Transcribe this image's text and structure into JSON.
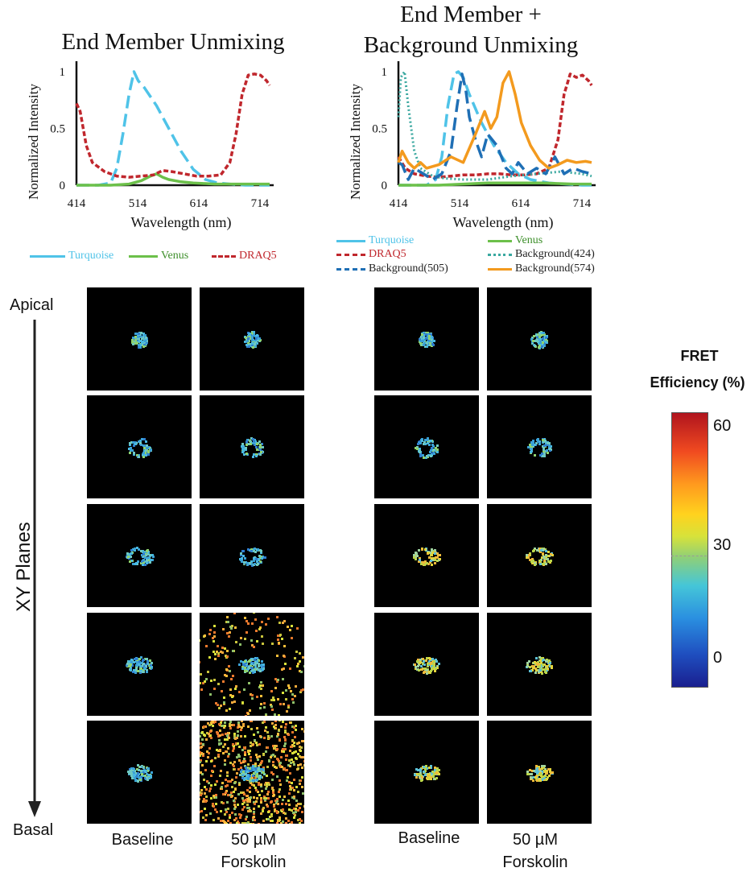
{
  "colors": {
    "turquoise": "#4fc3e8",
    "venus": "#6cc04a",
    "draq5": "#c0272d",
    "bg424": "#3aa8a0",
    "bg505": "#1f6fb5",
    "bg574": "#f39a1e",
    "background_tile": "#000000"
  },
  "chart_data": [
    {
      "type": "line",
      "title": "End Member Unmixing",
      "xlabel": "Wavelength (nm)",
      "ylabel": "Normalized Intensity",
      "x_ticks": [
        "414",
        "514",
        "614",
        "714"
      ],
      "y_ticks": [
        "0",
        "0.5",
        "1"
      ],
      "xlim": [
        414,
        730
      ],
      "ylim": [
        0,
        1.05
      ],
      "series": [
        {
          "name": "Turquoise",
          "color_key": "turquoise",
          "dash": "long",
          "x": [
            414,
            450,
            470,
            480,
            490,
            500,
            508,
            515,
            525,
            545,
            565,
            585,
            605,
            625,
            645,
            665,
            690,
            714,
            730
          ],
          "y": [
            0,
            0,
            0.02,
            0.15,
            0.45,
            0.8,
            1.0,
            0.92,
            0.86,
            0.7,
            0.5,
            0.3,
            0.14,
            0.05,
            0.02,
            0.01,
            0,
            0,
            0
          ]
        },
        {
          "name": "Venus",
          "color_key": "venus",
          "dash": "solid",
          "x": [
            414,
            470,
            500,
            520,
            535,
            545,
            555,
            565,
            585,
            605,
            640,
            680,
            730
          ],
          "y": [
            0,
            0,
            0.01,
            0.04,
            0.08,
            0.1,
            0.07,
            0.05,
            0.03,
            0.02,
            0.01,
            0.01,
            0.01
          ]
        },
        {
          "name": "DRAQ5",
          "color_key": "draq5",
          "dash": "short",
          "x": [
            414,
            420,
            430,
            440,
            460,
            480,
            500,
            520,
            540,
            555,
            570,
            590,
            610,
            630,
            650,
            665,
            675,
            685,
            695,
            705,
            715,
            725,
            730
          ],
          "y": [
            0.72,
            0.65,
            0.35,
            0.2,
            0.12,
            0.08,
            0.07,
            0.08,
            0.09,
            0.13,
            0.12,
            0.1,
            0.08,
            0.08,
            0.09,
            0.2,
            0.45,
            0.8,
            0.97,
            0.98,
            0.97,
            0.92,
            0.88
          ]
        }
      ]
    },
    {
      "type": "line",
      "title": "End Member + Background Unmixing",
      "title_lines": [
        "End Member +",
        "Background Unmixing"
      ],
      "xlabel": "Wavelength (nm)",
      "ylabel": "Normalized Intensity",
      "x_ticks": [
        "414",
        "514",
        "614",
        "714"
      ],
      "y_ticks": [
        "0",
        "0.5",
        "1"
      ],
      "xlim": [
        414,
        730
      ],
      "ylim": [
        0,
        1.05
      ],
      "series": [
        {
          "name": "Turquoise",
          "color_key": "turquoise",
          "dash": "long",
          "x": [
            414,
            460,
            475,
            485,
            495,
            505,
            512,
            520,
            530,
            550,
            570,
            590,
            610,
            630,
            660,
            714,
            730
          ],
          "y": [
            0,
            0,
            0.05,
            0.25,
            0.7,
            0.98,
            1.0,
            0.95,
            0.8,
            0.55,
            0.35,
            0.2,
            0.1,
            0.05,
            0.02,
            0,
            0
          ]
        },
        {
          "name": "Venus",
          "color_key": "venus",
          "dash": "solid",
          "x": [
            414,
            480,
            520,
            560,
            600,
            650,
            700,
            730
          ],
          "y": [
            0,
            0,
            0.01,
            0.02,
            0.02,
            0.02,
            0.01,
            0.01
          ]
        },
        {
          "name": "DRAQ5",
          "color_key": "draq5",
          "dash": "short",
          "x": [
            414,
            425,
            440,
            460,
            480,
            500,
            520,
            540,
            560,
            580,
            600,
            620,
            640,
            660,
            675,
            685,
            695,
            705,
            715,
            725,
            730
          ],
          "y": [
            0.25,
            0.15,
            0.1,
            0.08,
            0.07,
            0.08,
            0.09,
            0.09,
            0.1,
            0.1,
            0.09,
            0.09,
            0.1,
            0.15,
            0.4,
            0.8,
            0.98,
            0.95,
            0.97,
            0.92,
            0.88
          ]
        },
        {
          "name": "Background(424)",
          "color_key": "bg424",
          "dash": "dot",
          "x": [
            414,
            418,
            424,
            430,
            440,
            450,
            470,
            490,
            520,
            560,
            600,
            640,
            680,
            714,
            730
          ],
          "y": [
            0.6,
            0.95,
            1.0,
            0.7,
            0.3,
            0.15,
            0.08,
            0.06,
            0.05,
            0.05,
            0.08,
            0.1,
            0.12,
            0.1,
            0.08
          ]
        },
        {
          "name": "Background(505)",
          "color_key": "bg505",
          "dash": "long",
          "x": [
            414,
            420,
            430,
            440,
            455,
            470,
            485,
            500,
            510,
            518,
            524,
            530,
            540,
            550,
            560,
            575,
            590,
            600,
            610,
            625,
            640,
            655,
            670,
            685,
            700,
            715,
            730
          ],
          "y": [
            0.2,
            0.18,
            0.05,
            0.15,
            0.1,
            0.05,
            0.1,
            0.3,
            0.7,
            0.98,
            0.85,
            0.6,
            0.4,
            0.25,
            0.45,
            0.35,
            0.15,
            0.1,
            0.2,
            0.1,
            0.15,
            0.1,
            0.25,
            0.1,
            0.15,
            0.12,
            0.1
          ]
        },
        {
          "name": "Background(574)",
          "color_key": "bg574",
          "dash": "solid",
          "x": [
            414,
            420,
            430,
            440,
            450,
            460,
            480,
            500,
            520,
            540,
            555,
            565,
            575,
            585,
            595,
            605,
            615,
            630,
            645,
            660,
            675,
            690,
            705,
            720,
            730
          ],
          "y": [
            0.2,
            0.3,
            0.2,
            0.15,
            0.2,
            0.15,
            0.18,
            0.25,
            0.2,
            0.45,
            0.65,
            0.5,
            0.6,
            0.9,
            1.0,
            0.8,
            0.55,
            0.35,
            0.22,
            0.15,
            0.18,
            0.22,
            0.2,
            0.21,
            0.2
          ]
        }
      ]
    }
  ],
  "legend_left": [
    "Turquoise",
    "Venus",
    "DRAQ5"
  ],
  "legend_right": [
    "Turquoise",
    "Venus",
    "DRAQ5",
    "Background(424)",
    "Background(505)",
    "Background(574)"
  ],
  "side": {
    "apical": "Apical",
    "basal": "Basal",
    "planes": "XY Planes"
  },
  "columns": {
    "baseline": "Baseline",
    "forskolin_line1": "50 µM",
    "forskolin_line2": "Forskolin"
  },
  "colorbar": {
    "title_line1": "FRET",
    "title_line2": "Efficiency (%)",
    "ticks": [
      "60",
      "30",
      "0"
    ],
    "colormap": "jet"
  }
}
